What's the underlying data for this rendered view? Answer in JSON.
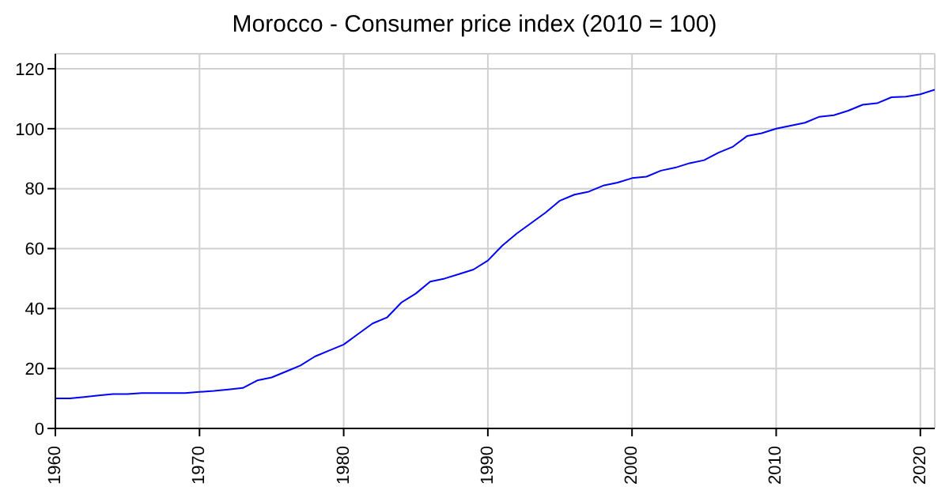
{
  "chart_data": {
    "type": "line",
    "title": "Morocco - Consumer price index (2010 = 100)",
    "x": [
      1960,
      1961,
      1962,
      1963,
      1964,
      1965,
      1966,
      1967,
      1968,
      1969,
      1970,
      1971,
      1972,
      1973,
      1974,
      1975,
      1976,
      1977,
      1978,
      1979,
      1980,
      1981,
      1982,
      1983,
      1984,
      1985,
      1986,
      1987,
      1988,
      1989,
      1990,
      1991,
      1992,
      1993,
      1994,
      1995,
      1996,
      1997,
      1998,
      1999,
      2000,
      2001,
      2002,
      2003,
      2004,
      2005,
      2006,
      2007,
      2008,
      2009,
      2010,
      2011,
      2012,
      2013,
      2014,
      2015,
      2016,
      2017,
      2018,
      2019,
      2020,
      2021
    ],
    "series": [
      {
        "color": "#0000ff",
        "values": [
          10,
          10,
          10.5,
          11,
          11.5,
          11.5,
          11.8,
          11.8,
          11.8,
          11.8,
          12.2,
          12.5,
          13,
          13.5,
          16,
          17,
          19,
          21,
          24,
          26,
          28,
          31.5,
          35,
          37,
          42,
          45,
          49,
          50,
          51.5,
          53,
          56,
          61,
          65,
          68.5,
          72,
          76,
          78,
          79,
          81,
          82,
          83.5,
          84,
          86,
          87,
          88.5,
          89.5,
          92,
          94,
          97.6,
          98.5,
          100,
          101,
          102,
          104,
          104.5,
          106,
          108,
          108.5,
          110.5,
          110.7,
          111.5,
          113
        ]
      }
    ],
    "xlim": [
      1960,
      2021
    ],
    "xticks": [
      1960,
      1970,
      1980,
      1990,
      2000,
      2010,
      2020
    ],
    "ylim": [
      0,
      125
    ],
    "yticks": [
      0,
      20,
      40,
      60,
      80,
      100,
      120
    ],
    "grid": true,
    "marker": "none",
    "line_style": "solid"
  }
}
